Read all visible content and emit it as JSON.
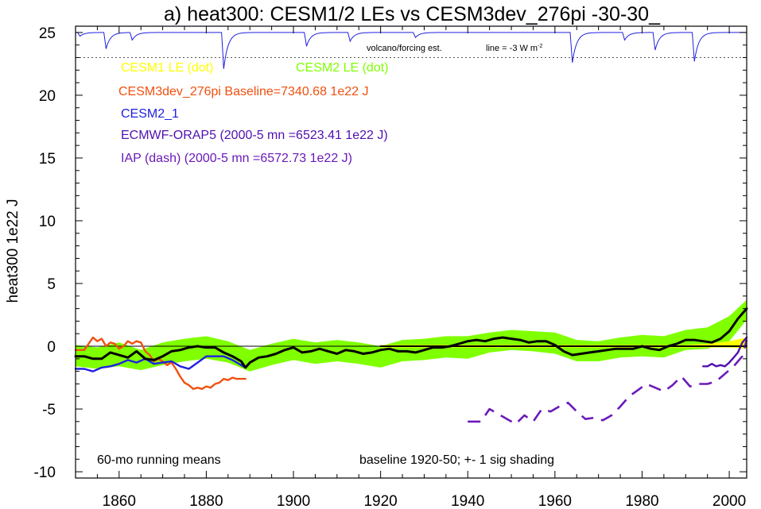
{
  "chart_data": {
    "type": "line",
    "title": "a) heat300: CESM1/2 LEs vs CESM3dev_276pi -30-30_",
    "xlabel": "",
    "ylabel": "heat300 1e22 J",
    "xlim": [
      1850,
      2004
    ],
    "ylim": [
      -10.5,
      25.5
    ],
    "xticks": [
      1860,
      1880,
      1900,
      1920,
      1940,
      1960,
      1980,
      2000
    ],
    "yticks": [
      -10,
      -5,
      0,
      5,
      10,
      15,
      20,
      25
    ],
    "colors": {
      "cesm1": "#ffff00",
      "cesm2": "#80ff00",
      "cesm3": "#f05010",
      "cesm2_1": "#2020e0",
      "orap5": "#5010b0",
      "iap": "#6a1ab8",
      "mean": "#000000"
    },
    "legend": [
      {
        "label": "CESM1 LE (dot)",
        "color": "#ffff00"
      },
      {
        "label": "CESM2 LE (dot)",
        "color": "#80ff00"
      },
      {
        "label": "CESM3dev_276pi Baseline=7340.68 1e22 J",
        "color": "#f05010"
      },
      {
        "label": "CESM2_1",
        "color": "#2020e0"
      },
      {
        "label": "ECMWF-ORAP5 (2000-5 mn =6523.41 1e22 J)",
        "color": "#5010b0"
      },
      {
        "label": "IAP (dash) (2000-5 mn =6572.73 1e22 J)",
        "color": "#6a1ab8"
      }
    ],
    "annotations": {
      "volcano": "volcano/forcing est.",
      "line_note_prefix": "line = -3 W m",
      "line_note_sup": "-2",
      "running": "60-mo running means",
      "baseline": "baseline 1920-50; +- 1 sig shading"
    },
    "volcano_ref_y": 23,
    "volcano_dips": [
      [
        1851,
        0.3
      ],
      [
        1857,
        1.3
      ],
      [
        1863,
        0.6
      ],
      [
        1884,
        2.9
      ],
      [
        1903,
        1.1
      ],
      [
        1913,
        0.7
      ],
      [
        1928,
        0.4
      ],
      [
        1964,
        2.4
      ],
      [
        1976,
        0.6
      ],
      [
        1983,
        1.4
      ],
      [
        1992,
        2.3
      ]
    ],
    "series": [
      {
        "name": "CESM2 LE spread",
        "kind": "band",
        "color": "#80ff00",
        "x": [
          1850,
          1855,
          1860,
          1865,
          1870,
          1875,
          1880,
          1885,
          1890,
          1895,
          1900,
          1905,
          1910,
          1915,
          1920,
          1925,
          1930,
          1935,
          1940,
          1945,
          1950,
          1955,
          1960,
          1965,
          1970,
          1975,
          1980,
          1985,
          1990,
          1995,
          2000,
          2004
        ],
        "lower": [
          -1.6,
          -1.8,
          -1.6,
          -1.9,
          -1.5,
          -1.2,
          -1.0,
          -1.3,
          -2.0,
          -1.5,
          -1.1,
          -1.4,
          -1.2,
          -1.4,
          -1.7,
          -1.2,
          -1.1,
          -0.9,
          -1.0,
          -0.5,
          -0.3,
          -0.4,
          -0.6,
          -1.2,
          -1.2,
          -0.9,
          -0.8,
          -0.9,
          -0.3,
          -0.2,
          0.4,
          2.1
        ],
        "upper": [
          0.1,
          -0.1,
          0.3,
          -0.3,
          0.3,
          0.6,
          0.8,
          0.4,
          -0.3,
          0.2,
          0.6,
          0.3,
          0.5,
          0.3,
          0.0,
          0.5,
          0.6,
          0.8,
          0.8,
          1.1,
          1.3,
          1.2,
          1.1,
          0.5,
          0.4,
          0.7,
          0.9,
          0.8,
          1.3,
          1.5,
          2.4,
          3.7
        ]
      },
      {
        "name": "CESM1 LE spread",
        "kind": "band",
        "color": "#ffff00",
        "x": [
          1920,
          1940,
          1960,
          1980,
          1990,
          1995,
          2000,
          2004
        ],
        "lower": [
          -0.1,
          -0.1,
          -0.1,
          -0.1,
          -0.1,
          -0.1,
          -0.1,
          -0.2
        ],
        "upper": [
          0.1,
          0.1,
          0.1,
          0.1,
          0.1,
          0.2,
          0.4,
          0.7
        ]
      },
      {
        "name": "CESM3dev_276pi",
        "kind": "line",
        "color": "#f05010",
        "x": [
          1850,
          1852,
          1853,
          1854,
          1855,
          1856,
          1857,
          1858,
          1859,
          1860,
          1861,
          1862,
          1863,
          1864,
          1865,
          1866,
          1867,
          1868,
          1869,
          1870,
          1871,
          1872,
          1873,
          1874,
          1875,
          1876,
          1877,
          1878,
          1879,
          1880,
          1881,
          1882,
          1883,
          1884,
          1885,
          1886,
          1887,
          1888,
          1889
        ],
        "y": [
          -0.3,
          -0.3,
          0.2,
          0.7,
          0.4,
          0.6,
          0.0,
          0.3,
          0.2,
          -0.2,
          0.0,
          0.4,
          0.2,
          0.4,
          0.3,
          -0.4,
          -0.7,
          -1.2,
          -1.0,
          -1.2,
          -1.5,
          -1.3,
          -1.8,
          -2.4,
          -2.9,
          -3.1,
          -3.4,
          -3.3,
          -3.4,
          -3.2,
          -3.3,
          -3.0,
          -2.9,
          -2.6,
          -2.7,
          -2.5,
          -2.6,
          -2.6,
          -2.6
        ]
      },
      {
        "name": "CESM2_1",
        "kind": "line",
        "color": "#2020e0",
        "x": [
          1850,
          1852,
          1854,
          1856,
          1858,
          1860,
          1862,
          1864,
          1866,
          1868,
          1870,
          1872,
          1874,
          1876,
          1878,
          1880,
          1882,
          1884,
          1886,
          1888,
          1889
        ],
        "y": [
          -1.8,
          -1.8,
          -2.0,
          -1.7,
          -1.6,
          -1.4,
          -1.1,
          -1.3,
          -1.0,
          -1.4,
          -1.3,
          -1.2,
          -1.6,
          -1.8,
          -1.3,
          -0.8,
          -0.8,
          -0.8,
          -1.1,
          -1.5,
          -1.7
        ]
      },
      {
        "name": "CESM LE mean",
        "kind": "line",
        "color": "#000000",
        "width": 3,
        "x": [
          1850,
          1852,
          1854,
          1856,
          1858,
          1860,
          1862,
          1864,
          1866,
          1868,
          1870,
          1872,
          1874,
          1876,
          1878,
          1880,
          1882,
          1884,
          1886,
          1888,
          1889,
          1890,
          1892,
          1894,
          1896,
          1898,
          1900,
          1902,
          1904,
          1906,
          1908,
          1910,
          1912,
          1914,
          1916,
          1918,
          1920,
          1922,
          1924,
          1926,
          1928,
          1930,
          1932,
          1934,
          1936,
          1938,
          1940,
          1942,
          1944,
          1946,
          1948,
          1950,
          1952,
          1954,
          1956,
          1958,
          1960,
          1962,
          1964,
          1966,
          1968,
          1970,
          1972,
          1974,
          1976,
          1978,
          1980,
          1982,
          1984,
          1986,
          1988,
          1990,
          1992,
          1994,
          1996,
          1998,
          2000,
          2002,
          2004
        ],
        "y": [
          -0.8,
          -0.8,
          -1.0,
          -1.0,
          -0.5,
          -0.7,
          -0.9,
          -0.4,
          -1.0,
          -1.1,
          -0.8,
          -0.4,
          -0.3,
          -0.1,
          0.0,
          -0.1,
          -0.1,
          -0.5,
          -0.8,
          -1.2,
          -1.7,
          -1.3,
          -0.9,
          -0.8,
          -0.6,
          -0.3,
          -0.1,
          -0.5,
          -0.4,
          -0.2,
          -0.4,
          -0.6,
          -0.3,
          -0.4,
          -0.6,
          -0.5,
          -0.3,
          -0.2,
          -0.4,
          -0.4,
          -0.5,
          -0.3,
          -0.1,
          -0.1,
          0.0,
          0.2,
          0.4,
          0.5,
          0.4,
          0.6,
          0.7,
          0.6,
          0.5,
          0.3,
          0.4,
          0.4,
          0.1,
          -0.4,
          -0.7,
          -0.6,
          -0.5,
          -0.4,
          -0.3,
          -0.2,
          -0.2,
          -0.2,
          0.0,
          -0.2,
          -0.3,
          0.0,
          0.2,
          0.5,
          0.5,
          0.4,
          0.3,
          0.6,
          1.2,
          2.2,
          3.0
        ]
      },
      {
        "name": "CESM1 LE mean",
        "kind": "line",
        "color": "#000000",
        "width": 2,
        "x": [
          1920,
          2004
        ],
        "y": [
          0.0,
          0.0
        ]
      },
      {
        "name": "ECMWF-ORAP5",
        "kind": "line",
        "color": "#5010b0",
        "x": [
          1994,
          1995,
          1996,
          1997,
          1998,
          1999,
          2000,
          2001,
          2002,
          2003,
          2004
        ],
        "y": [
          -1.6,
          -1.6,
          -1.4,
          -1.6,
          -1.5,
          -1.6,
          -1.3,
          -0.9,
          -0.5,
          0.3,
          0.7
        ]
      },
      {
        "name": "IAP",
        "kind": "line",
        "color": "#6a1ab8",
        "dash": true,
        "x": [
          1940,
          1943,
          1945,
          1947,
          1949,
          1951,
          1953,
          1955,
          1957,
          1959,
          1961,
          1963,
          1965,
          1967,
          1969,
          1971,
          1973,
          1975,
          1977,
          1979,
          1981,
          1983,
          1985,
          1987,
          1989,
          1991,
          1993,
          1995,
          1997,
          1999,
          2001,
          2003,
          2004
        ],
        "y": [
          -6.0,
          -6.0,
          -5.0,
          -5.4,
          -5.8,
          -6.2,
          -5.5,
          -6.0,
          -5.0,
          -5.2,
          -4.8,
          -4.5,
          -5.2,
          -5.8,
          -5.7,
          -5.9,
          -5.5,
          -4.8,
          -4.0,
          -3.5,
          -3.0,
          -3.3,
          -3.6,
          -3.1,
          -2.4,
          -3.2,
          -3.0,
          -3.0,
          -2.8,
          -2.2,
          -1.6,
          -0.8,
          0.5
        ]
      }
    ]
  }
}
